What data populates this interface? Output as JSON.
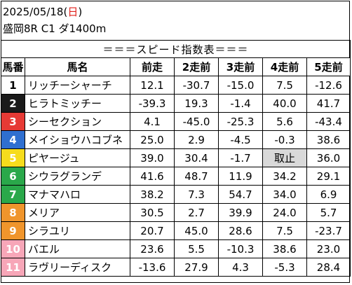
{
  "header": {
    "date_prefix": "2025/05/18",
    "day_open": "(",
    "day": "日",
    "day_close": ")",
    "race_info": "盛岡8R C1 ダ1400m",
    "colors": {
      "day": "#e0201b"
    }
  },
  "table": {
    "title": "＝＝＝スピード指数表＝＝＝",
    "columns": [
      "馬番",
      "馬名",
      "前走",
      "2走前",
      "3走前",
      "4走前",
      "5走前"
    ],
    "rows": [
      {
        "no": "1",
        "name": "リッチーシャーチ",
        "v": [
          "12.1",
          "-30.7",
          "-15.0",
          "7.5",
          "-12.6"
        ],
        "bg": "#ffffff",
        "fg": "#000000"
      },
      {
        "no": "2",
        "name": "ヒラトミッチー",
        "v": [
          "-39.3",
          "19.3",
          "-1.4",
          "40.0",
          "41.7"
        ],
        "bg": "#1a1a1a",
        "fg": "#ffffff"
      },
      {
        "no": "3",
        "name": "シーセクション",
        "v": [
          "4.1",
          "-45.0",
          "-25.3",
          "5.6",
          "-43.4"
        ],
        "bg": "#e63a35",
        "fg": "#ffffff"
      },
      {
        "no": "4",
        "name": "メイショウハコブネ",
        "v": [
          "25.0",
          "2.9",
          "-4.5",
          "-0.3",
          "38.6"
        ],
        "bg": "#2f6fd0",
        "fg": "#ffffff"
      },
      {
        "no": "5",
        "name": "ピヤージュ",
        "v": [
          "39.0",
          "30.4",
          "-1.7",
          "取止",
          "36.0"
        ],
        "bg": "#f6dc1c",
        "fg": "#ffffff"
      },
      {
        "no": "6",
        "name": "シウラグランデ",
        "v": [
          "41.6",
          "48.7",
          "11.9",
          "34.2",
          "29.1"
        ],
        "bg": "#2aa84a",
        "fg": "#ffffff"
      },
      {
        "no": "7",
        "name": "マナマハロ",
        "v": [
          "38.2",
          "7.3",
          "54.7",
          "34.0",
          "6.9"
        ],
        "bg": "#2aa84a",
        "fg": "#ffffff"
      },
      {
        "no": "8",
        "name": "メリア",
        "v": [
          "30.5",
          "2.7",
          "39.9",
          "24.0",
          "5.7"
        ],
        "bg": "#f0952c",
        "fg": "#ffffff"
      },
      {
        "no": "9",
        "name": "シラユリ",
        "v": [
          "20.7",
          "45.0",
          "28.6",
          "7.5",
          "-23.7"
        ],
        "bg": "#f0952c",
        "fg": "#ffffff"
      },
      {
        "no": "10",
        "name": "バエル",
        "v": [
          "23.6",
          "5.5",
          "-10.3",
          "38.6",
          "23.0"
        ],
        "bg": "#f7a6b8",
        "fg": "#ffffff"
      },
      {
        "no": "11",
        "name": "ラヴリーディスク",
        "v": [
          "-13.6",
          "27.9",
          "4.3",
          "-5.3",
          "28.4"
        ],
        "bg": "#f7a6b8",
        "fg": "#ffffff"
      }
    ],
    "cancel_bg": "#d9d9d9"
  }
}
